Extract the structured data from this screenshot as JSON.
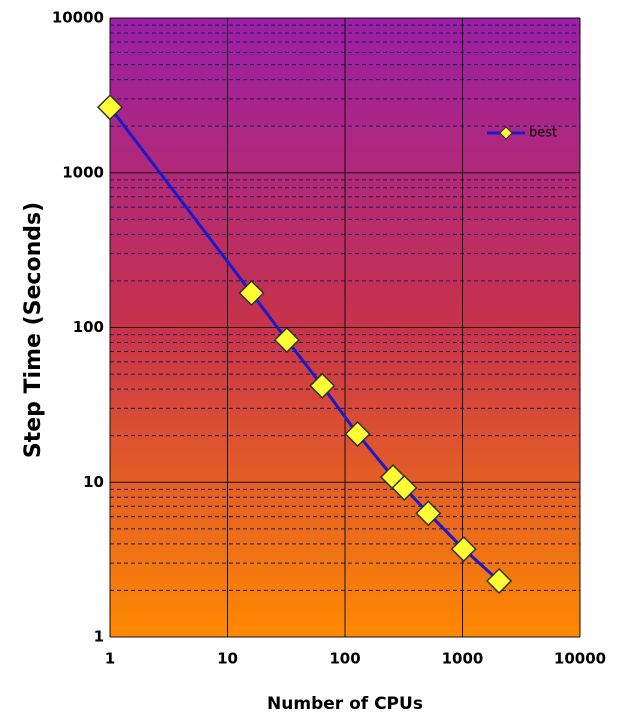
{
  "chart_data": {
    "type": "line",
    "xlabel": "Number of CPUs",
    "ylabel": "Step Time (Seconds)",
    "log_x": true,
    "log_y": true,
    "grid": true,
    "legend": "upper right",
    "series": [
      {
        "name": "best",
        "color": "#1a1acc",
        "marker_color": "#ffff33",
        "x": [
          1,
          16,
          32,
          64,
          128,
          256,
          320,
          512,
          1024,
          2048
        ],
        "values": [
          2650,
          167,
          83,
          42,
          20.5,
          10.8,
          9.2,
          6.3,
          3.7,
          2.3
        ]
      }
    ],
    "xlim": [
      1,
      10000
    ],
    "xticks": [
      1,
      10,
      100,
      1000,
      10000
    ],
    "ylim": [
      1,
      10000
    ],
    "yticks": [
      1,
      10,
      100,
      1000,
      10000
    ],
    "yminorticks": [
      2,
      3,
      4,
      5,
      6,
      7,
      8,
      9,
      20,
      30,
      40,
      50,
      60,
      70,
      80,
      90,
      200,
      300,
      400,
      500,
      600,
      700,
      800,
      900,
      2000,
      3000,
      4000,
      5000,
      6000,
      7000,
      8000,
      9000
    ]
  }
}
